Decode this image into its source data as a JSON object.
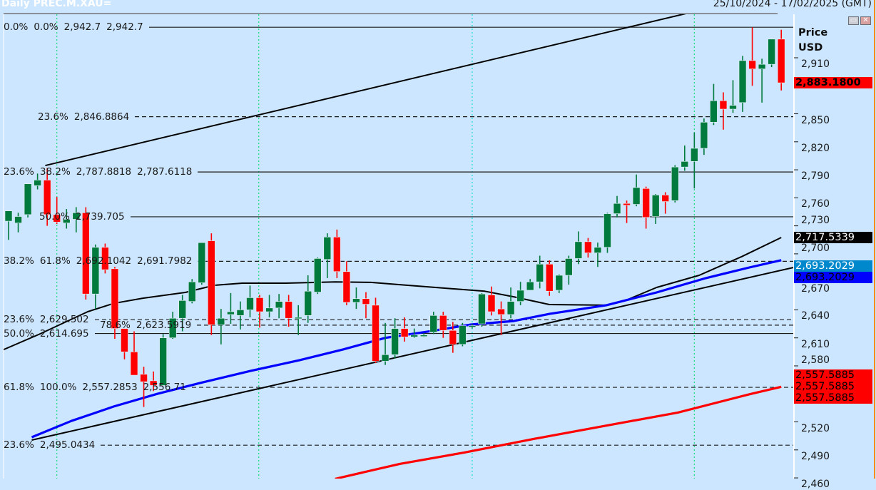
{
  "header": {
    "title": "Daily PREC.M.XAU=",
    "date_range": "25/10/2024 - 17/02/2025 (GMT)"
  },
  "window_buttons": {
    "restore": "restore-icon",
    "close": "close-icon"
  },
  "axis": {
    "title_line1": "Price",
    "title_line2": "USD"
  },
  "colors": {
    "background": "#cce6ff",
    "bull_candle": "#007a3d",
    "bear_candle": "#ff0000",
    "ma_black": "#000000",
    "ma_blue": "#0000ff",
    "ma_red": "#ff0000",
    "vertical_marker_green": "#22dd88",
    "vertical_marker_cyan": "#22dddd"
  },
  "chart_data": {
    "type": "candlestick",
    "title": "Daily PREC.M.XAU=",
    "ylabel": "Price USD",
    "ylim": [
      2455,
      2960
    ],
    "grid": false,
    "y_ticks": [
      2460,
      2490,
      2520,
      2550,
      2580,
      2610,
      2640,
      2670,
      2700,
      2730,
      2760,
      2790,
      2820,
      2850,
      2880,
      2910
    ],
    "y_tick_labels": [
      "2,460",
      "2,490",
      "2,520",
      "",
      "2,580",
      "2,610",
      "2,640",
      "2,670",
      "2,700",
      "2,730",
      "2,760",
      "2,790",
      "2,820",
      "2,850",
      "",
      "2,910"
    ],
    "candles_ohlc": [
      [
        2735,
        2746,
        2715,
        2746
      ],
      [
        2733,
        2744,
        2723,
        2740
      ],
      [
        2742,
        2775,
        2739,
        2775
      ],
      [
        2773,
        2786,
        2769,
        2779
      ],
      [
        2779,
        2792,
        2730,
        2742
      ],
      [
        2742,
        2761,
        2732,
        2734
      ],
      [
        2733,
        2748,
        2727,
        2737
      ],
      [
        2737,
        2750,
        2723,
        2744
      ],
      [
        2744,
        2750,
        2651,
        2657
      ],
      [
        2657,
        2710,
        2641,
        2707
      ],
      [
        2707,
        2711,
        2679,
        2683
      ],
      [
        2684,
        2686,
        2609,
        2620
      ],
      [
        2620,
        2620,
        2587,
        2595
      ],
      [
        2595,
        2617,
        2570,
        2570
      ],
      [
        2571,
        2579,
        2536,
        2563
      ],
      [
        2564,
        2574,
        2553,
        2559
      ],
      [
        2559,
        2614,
        2559,
        2610
      ],
      [
        2610,
        2638,
        2609,
        2631
      ],
      [
        2631,
        2656,
        2617,
        2650
      ],
      [
        2649,
        2673,
        2647,
        2670
      ],
      [
        2669,
        2712,
        2667,
        2712
      ],
      [
        2714,
        2722,
        2613,
        2624
      ],
      [
        2624,
        2641,
        2603,
        2631
      ],
      [
        2635,
        2658,
        2625,
        2638
      ],
      [
        2634,
        2649,
        2619,
        2640
      ],
      [
        2640,
        2666,
        2632,
        2653
      ],
      [
        2653,
        2656,
        2621,
        2638
      ],
      [
        2638,
        2656,
        2632,
        2642
      ],
      [
        2642,
        2657,
        2631,
        2649
      ],
      [
        2649,
        2656,
        2622,
        2631
      ],
      [
        2631,
        2645,
        2613,
        2632
      ],
      [
        2634,
        2677,
        2626,
        2660
      ],
      [
        2659,
        2696,
        2657,
        2695
      ],
      [
        2694,
        2722,
        2674,
        2718
      ],
      [
        2718,
        2726,
        2674,
        2681
      ],
      [
        2681,
        2692,
        2645,
        2648
      ],
      [
        2648,
        2664,
        2641,
        2652
      ],
      [
        2652,
        2659,
        2631,
        2646
      ],
      [
        2645,
        2653,
        2583,
        2585
      ],
      [
        2585,
        2626,
        2581,
        2592
      ],
      [
        2592,
        2631,
        2588,
        2620
      ],
      [
        2620,
        2632,
        2606,
        2611
      ],
      [
        2611,
        2620,
        2610,
        2613
      ],
      [
        2613,
        2615,
        2611,
        2613
      ],
      [
        2616,
        2638,
        2614,
        2634
      ],
      [
        2634,
        2638,
        2610,
        2618
      ],
      [
        2618,
        2627,
        2594,
        2603
      ],
      [
        2603,
        2626,
        2601,
        2623
      ],
      [
        2623,
        2625,
        2620,
        2623
      ],
      [
        2625,
        2658,
        2622,
        2657
      ],
      [
        2656,
        2665,
        2634,
        2638
      ],
      [
        2641,
        2649,
        2613,
        2635
      ],
      [
        2635,
        2664,
        2631,
        2649
      ],
      [
        2649,
        2670,
        2645,
        2661
      ],
      [
        2661,
        2673,
        2661,
        2670
      ],
      [
        2670,
        2698,
        2663,
        2689
      ],
      [
        2689,
        2693,
        2655,
        2660
      ],
      [
        2661,
        2678,
        2658,
        2677
      ],
      [
        2677,
        2698,
        2667,
        2695
      ],
      [
        2695,
        2724,
        2689,
        2713
      ],
      [
        2713,
        2717,
        2696,
        2701
      ],
      [
        2701,
        2712,
        2686,
        2707
      ],
      [
        2707,
        2744,
        2701,
        2743
      ],
      [
        2743,
        2762,
        2739,
        2754
      ],
      [
        2754,
        2757,
        2733,
        2752
      ],
      [
        2753,
        2785,
        2751,
        2771
      ],
      [
        2770,
        2772,
        2727,
        2739
      ],
      [
        2740,
        2764,
        2732,
        2763
      ],
      [
        2763,
        2766,
        2743,
        2756
      ],
      [
        2757,
        2795,
        2755,
        2793
      ],
      [
        2793,
        2816,
        2789,
        2799
      ],
      [
        2799,
        2830,
        2770,
        2813
      ],
      [
        2813,
        2845,
        2806,
        2841
      ],
      [
        2841,
        2882,
        2838,
        2864
      ],
      [
        2864,
        2873,
        2833,
        2855
      ],
      [
        2855,
        2886,
        2851,
        2859
      ],
      [
        2862,
        2912,
        2852,
        2907
      ],
      [
        2907,
        2942.7,
        2880,
        2898
      ],
      [
        2898,
        2909,
        2862,
        2903
      ],
      [
        2903,
        2930,
        2900,
        2930
      ],
      [
        2930,
        2940,
        2875,
        2883.18
      ]
    ],
    "moving_averages": [
      {
        "color": "#000000",
        "last": 2717.5339,
        "points": [
          [
            -0.5,
            2597.5
          ],
          [
            3.2,
            2614
          ],
          [
            8.2,
            2638
          ],
          [
            10.9,
            2647
          ],
          [
            13.9,
            2652.5
          ],
          [
            18.3,
            2658.7
          ],
          [
            21.3,
            2666.3
          ],
          [
            24.2,
            2668.6
          ],
          [
            28.7,
            2668.6
          ],
          [
            33.8,
            2670
          ],
          [
            37.5,
            2669.4
          ],
          [
            40.5,
            2667
          ],
          [
            44.2,
            2664
          ],
          [
            49.3,
            2660
          ],
          [
            52.3,
            2654
          ],
          [
            56,
            2645.7
          ],
          [
            61.9,
            2645
          ],
          [
            64.1,
            2651
          ],
          [
            67.1,
            2664
          ],
          [
            71.5,
            2677
          ],
          [
            75.9,
            2697
          ],
          [
            80,
            2717.5
          ]
        ]
      },
      {
        "color": "#0000ff",
        "last": 2693.2029,
        "points": [
          [
            2.4,
            2503.6
          ],
          [
            6.5,
            2521
          ],
          [
            10.9,
            2536.5
          ],
          [
            15.4,
            2550
          ],
          [
            19.8,
            2561.6
          ],
          [
            25,
            2574.5
          ],
          [
            30.1,
            2586
          ],
          [
            34.6,
            2597.5
          ],
          [
            39,
            2610
          ],
          [
            43.4,
            2616.7
          ],
          [
            47.9,
            2624.3
          ],
          [
            52.3,
            2628
          ],
          [
            56,
            2635.7
          ],
          [
            61.9,
            2645
          ],
          [
            67.1,
            2658.7
          ],
          [
            72.2,
            2674
          ],
          [
            76.7,
            2685.4
          ],
          [
            80,
            2693.2
          ]
        ]
      },
      {
        "color": "#ff0000",
        "last": 2557.5885,
        "points": [
          [
            33.8,
            2459
          ],
          [
            40.5,
            2475
          ],
          [
            47.1,
            2487
          ],
          [
            54.5,
            2502
          ],
          [
            61.9,
            2516
          ],
          [
            69.3,
            2530
          ],
          [
            76.7,
            2549.6
          ],
          [
            80,
            2557.6
          ]
        ]
      }
    ],
    "trend_lines": [
      {
        "name": "upper channel",
        "from": [
          3.8,
          2794.6
        ],
        "to": [
          70.4,
          2958
        ]
      },
      {
        "name": "lower channel",
        "from": [
          2.4,
          2500.5
        ],
        "to": [
          81.1,
          2685
        ]
      }
    ],
    "vertical_markers": [
      {
        "index": 5,
        "color": "#22dd88"
      },
      {
        "index": 25.9,
        "color": "#22dd88"
      },
      {
        "index": 48,
        "color": "#22dddd"
      },
      {
        "index": 71,
        "color": "#22dd88"
      }
    ],
    "fib_levels": [
      {
        "price": 2942.7,
        "style": "solid",
        "labels": [
          "0.0%",
          "0.0%",
          "2,942.7",
          "2,942.7"
        ]
      },
      {
        "price": 2846.8864,
        "style": "dashed",
        "labels": [
          "23.6%",
          "2,846.8864"
        ]
      },
      {
        "price": 2787.7,
        "style": "solid",
        "labels": [
          "23.6%",
          "38.2%",
          "2,787.8818",
          "2,787.6118"
        ]
      },
      {
        "price": 2739.705,
        "style": "solid",
        "labels": [
          "50.0%",
          "2,739.705"
        ]
      },
      {
        "price": 2692.0,
        "style": "dashed",
        "labels": [
          "38.2%",
          "61.8%",
          "2,692.1042",
          "2,691.7982"
        ]
      },
      {
        "price": 2629.502,
        "style": "dashed",
        "labels": [
          "23.6%",
          "2,629.502"
        ]
      },
      {
        "price": 2623.5919,
        "style": "dashed",
        "labels": [
          "78.6%",
          "2,623.5919"
        ]
      },
      {
        "price": 2614.695,
        "style": "solid",
        "labels": [
          "50.0%",
          "2,614.695"
        ]
      },
      {
        "price": 2557.0,
        "style": "dashed",
        "labels": [
          "61.8%",
          "100.0%",
          "2,557.2853",
          "2,556.71"
        ]
      },
      {
        "price": 2495.0434,
        "style": "dashed",
        "labels": [
          "23.6%",
          "2,495.0434"
        ]
      }
    ],
    "price_tags": [
      {
        "text": "2,883.1800",
        "price": 2883.18,
        "bg": "#ff0000",
        "fg": "#000000",
        "bold": true
      },
      {
        "text": "2,717.5339",
        "price": 2717.5339,
        "bg": "#000000",
        "fg": "#ffffff",
        "bold": false
      },
      {
        "text": "2,693.2029",
        "price": 2693.2029,
        "bg": "#0088cc",
        "fg": "#ffffff",
        "bold": false
      },
      {
        "text": "2,693.2029",
        "price": 2693.2029,
        "bg": "#0000ff",
        "fg": "#000000",
        "bold": false
      },
      {
        "text": "2,557.5885",
        "price": 2557.5885,
        "bg": "#ff0000",
        "fg": "#000000",
        "bold": false
      },
      {
        "text": "2,557.5885",
        "price": 2557.5885,
        "bg": "#ff0000",
        "fg": "#000000",
        "bold": false
      },
      {
        "text": "2,557.5885",
        "price": 2557.5885,
        "bg": "#ff0000",
        "fg": "#000000",
        "bold": false
      }
    ]
  }
}
